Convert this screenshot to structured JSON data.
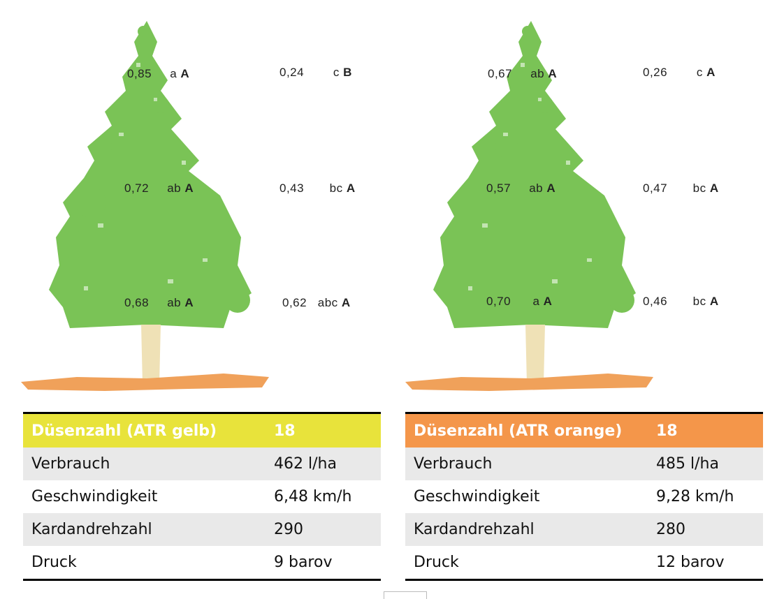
{
  "left": {
    "labels": [
      {
        "outer": "0,85",
        "outer_lower": "a",
        "outer_upper": "A",
        "inner": "0,24",
        "inner_lower": "c",
        "inner_upper": "B"
      },
      {
        "outer": "0,72",
        "outer_lower": "ab",
        "outer_upper": "A",
        "inner": "0,43",
        "inner_lower": "bc",
        "inner_upper": "A"
      },
      {
        "outer": "0,68",
        "outer_lower": "ab",
        "outer_upper": "A",
        "inner": "0,62",
        "inner_lower": "abc",
        "inner_upper": "A"
      }
    ],
    "table": {
      "header": {
        "label": "Düsenzahl (ATR gelb)",
        "value": "18"
      },
      "rows": [
        {
          "label": "Verbrauch",
          "value": "462 l/ha"
        },
        {
          "label": "Geschwindigkeit",
          "value": "6,48 km/h"
        },
        {
          "label": "Kardandrehzahl",
          "value": "290"
        },
        {
          "label": "Druck",
          "value": "9 barov"
        }
      ]
    }
  },
  "right": {
    "labels": [
      {
        "outer": "0,67",
        "outer_lower": "ab",
        "outer_upper": "A",
        "inner": "0,26",
        "inner_lower": "c",
        "inner_upper": "A"
      },
      {
        "outer": "0,57",
        "outer_lower": "ab",
        "outer_upper": "A",
        "inner": "0,47",
        "inner_lower": "bc",
        "inner_upper": "A"
      },
      {
        "outer": "0,70",
        "outer_lower": "a",
        "outer_upper": "A",
        "inner": "0,46",
        "inner_lower": "bc",
        "inner_upper": "A"
      }
    ],
    "table": {
      "header": {
        "label": "Düsenzahl (ATR orange)",
        "value": "18"
      },
      "rows": [
        {
          "label": "Verbrauch",
          "value": "485 l/ha"
        },
        {
          "label": "Geschwindigkeit",
          "value": "9,28 km/h"
        },
        {
          "label": "Kardandrehzahl",
          "value": "280"
        },
        {
          "label": "Druck",
          "value": "12 barov"
        }
      ]
    }
  },
  "colors": {
    "foliage": "#7ac356",
    "trunk": "#efe1b6",
    "ground": "#f0a15a",
    "header_yellow": "#e8e33b",
    "header_orange": "#f4964a",
    "row_alt": "#e9e9e9"
  }
}
